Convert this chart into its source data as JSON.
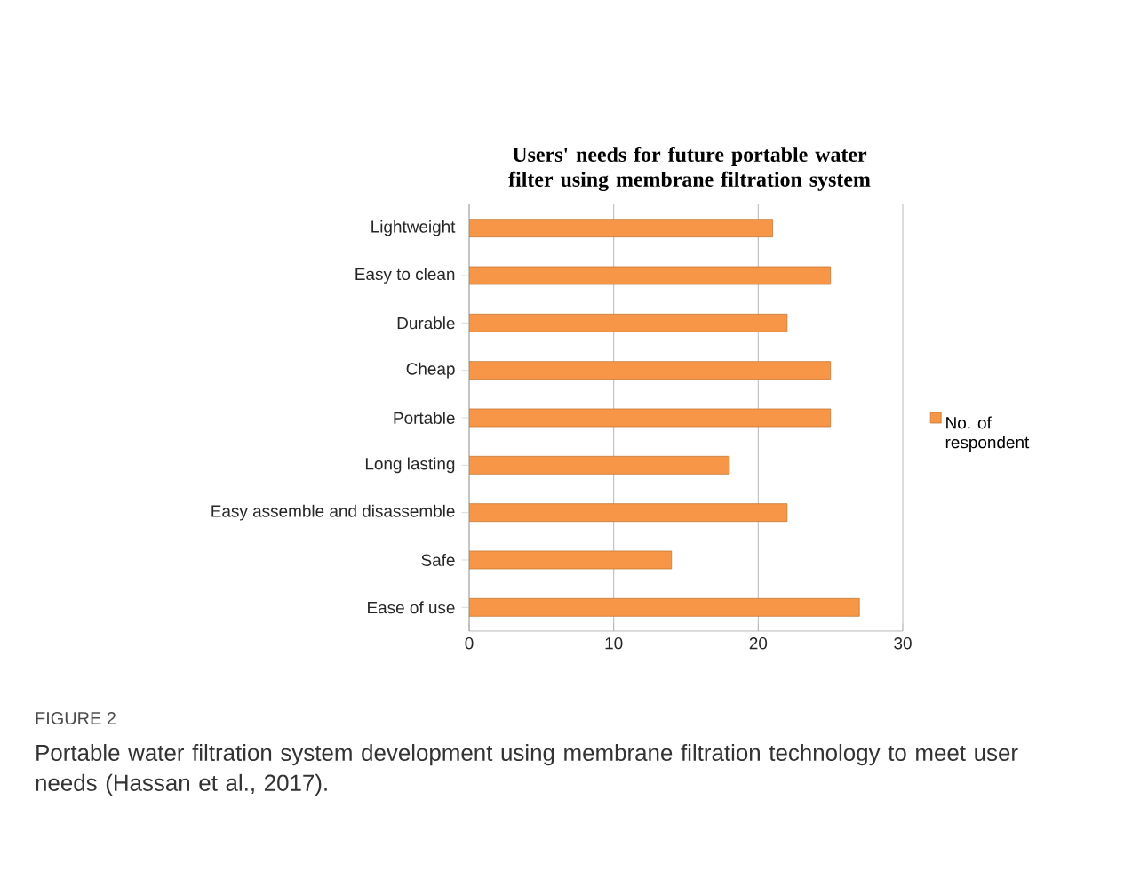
{
  "chart_data": {
    "type": "bar",
    "orientation": "horizontal",
    "title": "Users' needs for future portable water filter using membrane filtration system",
    "categories": [
      "Lightweight",
      "Easy to clean",
      "Durable",
      "Cheap",
      "Portable",
      "Long lasting",
      "Easy assemble and disassemble",
      "Safe",
      "Ease of use"
    ],
    "series": [
      {
        "name": "No. of respondent",
        "color": "#f79646",
        "values": [
          21,
          25,
          22,
          25,
          25,
          18,
          22,
          14,
          27
        ]
      }
    ],
    "xlim": [
      0,
      30
    ],
    "xticks": [
      0,
      10,
      20,
      30
    ],
    "grid": "x",
    "legend": "right",
    "annotations": [
      "FIGURE 2",
      "Portable water filtration system development using membrane filtration technology to meet user needs (Hassan et al., 2017)."
    ]
  }
}
